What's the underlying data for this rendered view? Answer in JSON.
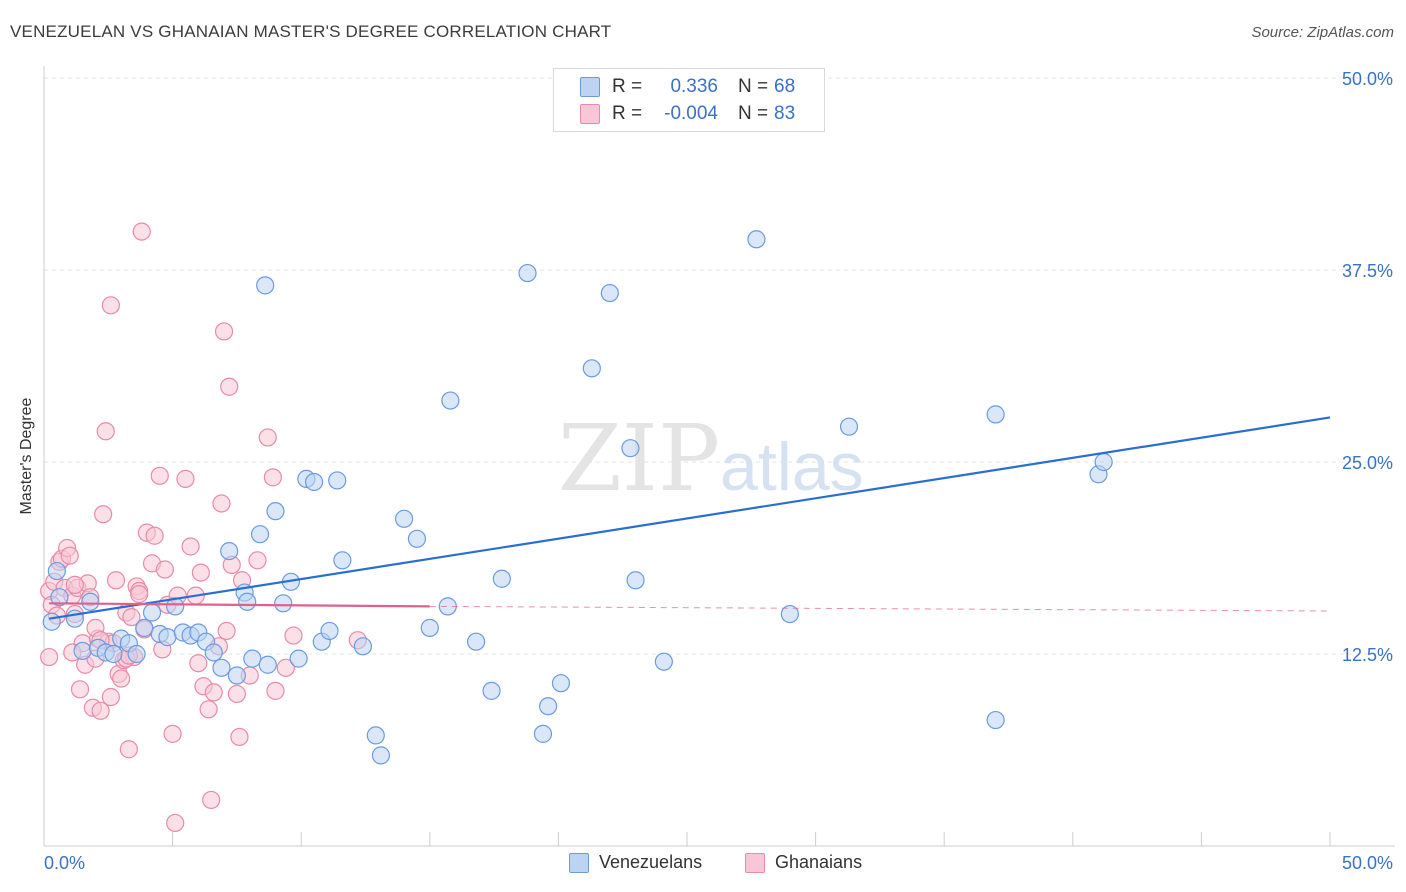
{
  "title": "VENEZUELAN VS GHANAIAN MASTER'S DEGREE CORRELATION CHART",
  "source": "Source: ZipAtlas.com",
  "watermark": {
    "zip": "ZIP",
    "atlas": "atlas"
  },
  "legend": {
    "r_label": "R =",
    "n_label": "N =",
    "venezuelans": {
      "r": "0.336",
      "n": "68"
    },
    "ghanaians": {
      "r": "-0.004",
      "n": "83"
    }
  },
  "bottom_legend": {
    "venezuelans": "Venezuelans",
    "ghanaians": "Ghanaians"
  },
  "chart_data": {
    "type": "scatter",
    "title": "VENEZUELAN VS GHANAIAN MASTER'S DEGREE CORRELATION CHART",
    "xlabel": "",
    "ylabel": "Master's Degree",
    "xlim": [
      0,
      50
    ],
    "ylim": [
      0,
      50
    ],
    "x_tick_labels": [
      "0.0%",
      "50.0%"
    ],
    "y_tick_values": [
      12.5,
      25.0,
      37.5,
      50.0
    ],
    "y_tick_labels": [
      "12.5%",
      "25.0%",
      "37.5%",
      "50.0%"
    ],
    "colors": {
      "venezuelans_fill": "#bcd3f2",
      "venezuelans_stroke": "#6a9be0",
      "venezuelans_line": "#2a6fd0",
      "ghanaians_fill": "#f8c6d6",
      "ghanaians_stroke": "#e88aa8",
      "ghanaians_line": "#e0608a",
      "grid": "#e3e3e3",
      "tick_label": "#3a70c8"
    },
    "series": [
      {
        "name": "Venezuelans",
        "trend": {
          "x": [
            0.2,
            50
          ],
          "y": [
            14.8,
            27.9
          ]
        },
        "points": [
          [
            0.3,
            14.6
          ],
          [
            0.5,
            17.9
          ],
          [
            0.6,
            16.2
          ],
          [
            1.2,
            14.8
          ],
          [
            1.5,
            12.7
          ],
          [
            1.8,
            15.9
          ],
          [
            2.1,
            12.9
          ],
          [
            2.4,
            12.6
          ],
          [
            2.7,
            12.5
          ],
          [
            3,
            13.5
          ],
          [
            3.3,
            13.2
          ],
          [
            3.6,
            12.5
          ],
          [
            3.9,
            14.2
          ],
          [
            4.2,
            15.2
          ],
          [
            4.5,
            13.8
          ],
          [
            4.8,
            13.6
          ],
          [
            5.1,
            15.6
          ],
          [
            5.4,
            13.9
          ],
          [
            5.7,
            13.7
          ],
          [
            6.0,
            13.9
          ],
          [
            6.3,
            13.3
          ],
          [
            6.6,
            12.6
          ],
          [
            6.9,
            11.6
          ],
          [
            7.2,
            19.2
          ],
          [
            7.5,
            11.1
          ],
          [
            7.8,
            16.5
          ],
          [
            8.1,
            12.2
          ],
          [
            8.4,
            20.3
          ],
          [
            8.7,
            11.8
          ],
          [
            9.0,
            21.8
          ],
          [
            9.3,
            15.8
          ],
          [
            9.6,
            17.2
          ],
          [
            9.9,
            12.2
          ],
          [
            10.2,
            23.9
          ],
          [
            10.5,
            23.7
          ],
          [
            10.8,
            13.3
          ],
          [
            11.1,
            14.0
          ],
          [
            11.4,
            23.8
          ],
          [
            11.6,
            18.6
          ],
          [
            12.4,
            13.0
          ],
          [
            12.9,
            7.2
          ],
          [
            14.0,
            21.3
          ],
          [
            14.5,
            20.0
          ],
          [
            15.0,
            14.2
          ],
          [
            15.7,
            15.6
          ],
          [
            15.8,
            29.0
          ],
          [
            16.8,
            13.3
          ],
          [
            17.4,
            10.1
          ],
          [
            17.8,
            17.4
          ],
          [
            18.8,
            37.3
          ],
          [
            19.4,
            7.3
          ],
          [
            19.6,
            9.1
          ],
          [
            20.1,
            10.6
          ],
          [
            21.3,
            31.1
          ],
          [
            22.0,
            36.0
          ],
          [
            22.8,
            25.9
          ],
          [
            23.0,
            17.3
          ],
          [
            24.1,
            12.0
          ],
          [
            27.7,
            39.5
          ],
          [
            29.0,
            15.1
          ],
          [
            31.3,
            27.3
          ],
          [
            37.0,
            28.1
          ],
          [
            37.0,
            8.2
          ],
          [
            41.0,
            24.2
          ],
          [
            41.2,
            25.0
          ],
          [
            7.9,
            15.9
          ],
          [
            8.6,
            36.5
          ],
          [
            13.1,
            5.9
          ]
        ]
      },
      {
        "name": "Ghanaians",
        "trend": {
          "x": [
            0.2,
            15
          ],
          "y": [
            15.8,
            15.6
          ]
        },
        "trend_dashed": {
          "x": [
            15,
            50
          ],
          "y": [
            15.6,
            15.3
          ]
        },
        "points": [
          [
            0.2,
            16.6
          ],
          [
            0.3,
            15.7
          ],
          [
            0.4,
            17.2
          ],
          [
            0.5,
            15.0
          ],
          [
            0.6,
            18.5
          ],
          [
            0.7,
            18.7
          ],
          [
            0.8,
            16.8
          ],
          [
            0.9,
            19.4
          ],
          [
            1.0,
            18.9
          ],
          [
            1.1,
            16.3
          ],
          [
            1.2,
            15.1
          ],
          [
            1.3,
            16.8
          ],
          [
            1.4,
            10.2
          ],
          [
            1.5,
            13.2
          ],
          [
            1.6,
            11.8
          ],
          [
            1.7,
            17.1
          ],
          [
            1.8,
            16.2
          ],
          [
            1.9,
            9.0
          ],
          [
            2.0,
            12.2
          ],
          [
            2.1,
            13.5
          ],
          [
            2.2,
            8.8
          ],
          [
            2.3,
            21.6
          ],
          [
            2.4,
            27.0
          ],
          [
            2.5,
            13.3
          ],
          [
            2.6,
            9.7
          ],
          [
            2.7,
            13.2
          ],
          [
            2.8,
            17.3
          ],
          [
            2.9,
            11.2
          ],
          [
            3.0,
            10.9
          ],
          [
            3.1,
            12.1
          ],
          [
            3.2,
            15.2
          ],
          [
            3.3,
            6.3
          ],
          [
            3.4,
            14.9
          ],
          [
            3.5,
            12.3
          ],
          [
            3.6,
            16.9
          ],
          [
            3.7,
            16.6
          ],
          [
            3.8,
            40.0
          ],
          [
            3.9,
            14.1
          ],
          [
            4.0,
            20.4
          ],
          [
            4.2,
            18.4
          ],
          [
            4.3,
            20.2
          ],
          [
            4.5,
            24.1
          ],
          [
            4.6,
            12.8
          ],
          [
            4.8,
            15.7
          ],
          [
            5.0,
            7.3
          ],
          [
            5.2,
            16.3
          ],
          [
            5.5,
            23.9
          ],
          [
            5.7,
            19.5
          ],
          [
            5.9,
            16.3
          ],
          [
            6.0,
            11.9
          ],
          [
            6.2,
            10.4
          ],
          [
            6.4,
            8.9
          ],
          [
            6.6,
            10.0
          ],
          [
            6.8,
            13.0
          ],
          [
            6.9,
            22.3
          ],
          [
            7.0,
            33.5
          ],
          [
            7.2,
            29.9
          ],
          [
            7.3,
            18.3
          ],
          [
            7.5,
            9.9
          ],
          [
            7.6,
            7.1
          ],
          [
            7.7,
            17.3
          ],
          [
            8.0,
            11.1
          ],
          [
            8.3,
            18.6
          ],
          [
            8.7,
            26.6
          ],
          [
            8.9,
            24.0
          ],
          [
            9.0,
            10.1
          ],
          [
            9.4,
            11.6
          ],
          [
            9.7,
            13.7
          ],
          [
            3.2,
            12.2
          ],
          [
            1.2,
            17.0
          ],
          [
            2.0,
            14.2
          ],
          [
            4.7,
            18.0
          ],
          [
            3.7,
            16.4
          ],
          [
            2.2,
            13.4
          ],
          [
            6.1,
            17.8
          ],
          [
            7.1,
            14.0
          ],
          [
            5.1,
            1.5
          ],
          [
            6.5,
            3.0
          ],
          [
            0.2,
            12.3
          ],
          [
            2.6,
            35.2
          ],
          [
            12.2,
            13.4
          ],
          [
            3.3,
            12.4
          ],
          [
            1.1,
            12.6
          ]
        ]
      }
    ]
  }
}
